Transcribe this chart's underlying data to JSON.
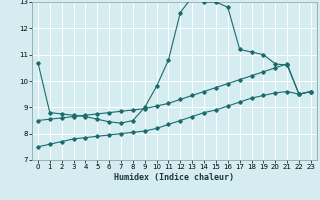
{
  "title": "",
  "xlabel": "Humidex (Indice chaleur)",
  "xlim": [
    -0.5,
    23.5
  ],
  "ylim": [
    7,
    13
  ],
  "yticks": [
    7,
    8,
    9,
    10,
    11,
    12,
    13
  ],
  "xticks": [
    0,
    1,
    2,
    3,
    4,
    5,
    6,
    7,
    8,
    9,
    10,
    11,
    12,
    13,
    14,
    15,
    16,
    17,
    18,
    19,
    20,
    21,
    22,
    23
  ],
  "background_color": "#d5edf0",
  "grid_color": "#c0d8dc",
  "line_color": "#1a6b6b",
  "line1_x": [
    0,
    1,
    2,
    3,
    4,
    5,
    6,
    7,
    8,
    9,
    10,
    11,
    12,
    13,
    14,
    15,
    16,
    17,
    18,
    19,
    20,
    21,
    22,
    23
  ],
  "line1_y": [
    10.7,
    8.8,
    8.75,
    8.7,
    8.65,
    8.55,
    8.45,
    8.4,
    8.5,
    9.0,
    9.8,
    10.8,
    12.6,
    13.2,
    13.0,
    13.0,
    12.8,
    11.2,
    11.1,
    11.0,
    10.65,
    10.6,
    9.5,
    9.6
  ],
  "line2_x": [
    0,
    1,
    2,
    3,
    4,
    5,
    6,
    7,
    8,
    9,
    10,
    11,
    12,
    13,
    14,
    15,
    16,
    17,
    18,
    19,
    20,
    21,
    22,
    23
  ],
  "line2_y": [
    8.5,
    8.55,
    8.6,
    8.65,
    8.7,
    8.75,
    8.8,
    8.85,
    8.9,
    8.95,
    9.05,
    9.15,
    9.3,
    9.45,
    9.6,
    9.75,
    9.9,
    10.05,
    10.2,
    10.35,
    10.5,
    10.65,
    9.5,
    9.6
  ],
  "line3_x": [
    0,
    1,
    2,
    3,
    4,
    5,
    6,
    7,
    8,
    9,
    10,
    11,
    12,
    13,
    14,
    15,
    16,
    17,
    18,
    19,
    20,
    21,
    22,
    23
  ],
  "line3_y": [
    7.5,
    7.6,
    7.7,
    7.8,
    7.85,
    7.9,
    7.95,
    8.0,
    8.05,
    8.1,
    8.2,
    8.35,
    8.5,
    8.65,
    8.8,
    8.9,
    9.05,
    9.2,
    9.35,
    9.45,
    9.55,
    9.6,
    9.5,
    9.6
  ]
}
